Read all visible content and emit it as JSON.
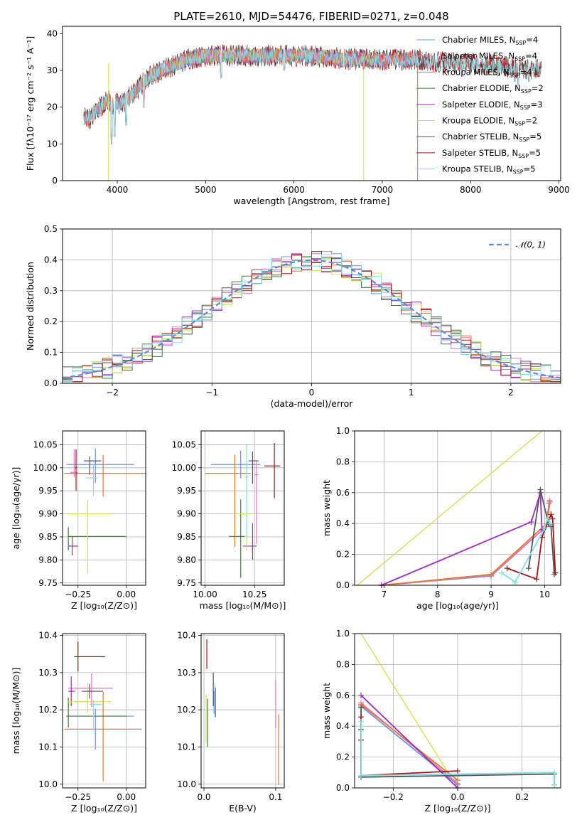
{
  "figure_title": "PLATE=2610, MJD=54476, FIBERID=0271, z=0.048",
  "colors": {
    "chabrier_miles": "#6495ed",
    "salpeter_miles": "#e377c2",
    "kroupa_miles": "#e6772e",
    "chabrier_elodie": "#3f7f3f",
    "salpeter_elodie": "#9c2fbd",
    "kroupa_elodie": "#d4e157",
    "chabrier_stelib": "#555555",
    "salpeter_stelib": "#a31515",
    "kroupa_stelib": "#80deea",
    "normal_curve": "#5b8bd9"
  },
  "legend": [
    {
      "key": "chabrier_miles",
      "label": "Chabrier MILES, N",
      "sub": "SSP",
      "tail": "=4"
    },
    {
      "key": "salpeter_miles",
      "label": "Salpeter MILES, N",
      "sub": "SSP",
      "tail": "=4"
    },
    {
      "key": "kroupa_miles",
      "label": "Kroupa MILES, N",
      "sub": "SSP",
      "tail": "=4"
    },
    {
      "key": "chabrier_elodie",
      "label": "Chabrier ELODIE, N",
      "sub": "SSP",
      "tail": "=2"
    },
    {
      "key": "salpeter_elodie",
      "label": "Salpeter ELODIE, N",
      "sub": "SSP",
      "tail": "=3"
    },
    {
      "key": "kroupa_elodie",
      "label": "Kroupa ELODIE, N",
      "sub": "SSP",
      "tail": "=2"
    },
    {
      "key": "chabrier_stelib",
      "label": "Chabrier STELIB, N",
      "sub": "SSP",
      "tail": "=5"
    },
    {
      "key": "salpeter_stelib",
      "label": "Salpeter STELIB, N",
      "sub": "SSP",
      "tail": "=5"
    },
    {
      "key": "kroupa_stelib",
      "label": "Kroupa STELIB, N",
      "sub": "SSP",
      "tail": "=5"
    }
  ],
  "chart_data": [
    {
      "id": "spectrum",
      "type": "line",
      "xlabel": "wavelength [Angstrom, rest frame]",
      "ylabel": "Flux [fλ10⁻¹⁷ erg cm⁻² s⁻¹ A⁻¹]",
      "xlim": [
        3380,
        9020
      ],
      "ylim": [
        0,
        42
      ],
      "xticks": [
        4000,
        5000,
        6000,
        7000,
        8000,
        9000
      ],
      "yticks": [
        0,
        10,
        20,
        30,
        40
      ],
      "continuum": {
        "x": [
          3620,
          3700,
          3800,
          3900,
          3950,
          4050,
          4200,
          4300,
          4400,
          4600,
          4800,
          5000,
          5200,
          5400,
          5600,
          5800,
          6000,
          6200,
          6400,
          6600,
          6800,
          7000,
          7200,
          7400,
          7600,
          7800,
          8000,
          8200,
          8400,
          8600,
          8800
        ],
        "y": [
          17,
          17,
          20,
          22,
          21,
          21,
          24,
          27,
          29,
          31,
          33,
          34,
          34,
          34,
          34,
          34,
          34,
          34,
          33.5,
          33,
          33,
          33,
          33,
          33,
          32.5,
          32,
          32,
          31.5,
          31,
          30.5,
          30.5
        ]
      },
      "dips": [
        {
          "x": 3934,
          "y": 10
        },
        {
          "x": 3969,
          "y": 12
        },
        {
          "x": 4101,
          "y": 15
        },
        {
          "x": 4300,
          "y": 20
        },
        {
          "x": 5175,
          "y": 28
        },
        {
          "x": 5890,
          "y": 30
        },
        {
          "x": 6563,
          "y": 31
        },
        {
          "x": 8498,
          "y": 27
        },
        {
          "x": 8542,
          "y": 26
        },
        {
          "x": 8662,
          "y": 27
        }
      ],
      "drop_lines": [
        {
          "series": "kroupa_elodie",
          "x": 3900
        },
        {
          "series": "kroupa_elodie",
          "x": 6790
        },
        {
          "series": "kroupa_miles",
          "x": 7400
        }
      ]
    },
    {
      "id": "residuals",
      "type": "histogram",
      "xlabel": "(data-model)/error",
      "ylabel": "Normed distribution",
      "xlim": [
        -2.5,
        2.5
      ],
      "ylim": [
        0,
        0.5
      ],
      "xticks": [
        -2,
        -1,
        0,
        1,
        2
      ],
      "yticks": [
        0.0,
        0.1,
        0.2,
        0.3,
        0.4,
        0.5
      ],
      "bins": 50,
      "legend_label": "𝒩(0, 1)"
    },
    {
      "id": "age_vs_z",
      "type": "scatter",
      "xlabel": "Z [log₁₀(Z/Z⊙)]",
      "ylabel": "age  [log₁₀(age/yr)]",
      "xlim": [
        -0.33,
        0.1
      ],
      "ylim": [
        9.745,
        10.08
      ],
      "xticks": [
        -0.25,
        0.0
      ],
      "yticks": [
        9.75,
        9.8,
        9.85,
        9.9,
        9.95,
        10.0,
        10.05
      ],
      "points": [
        {
          "s": "chabrier_miles",
          "x": -0.16,
          "xerr": [
            0.15,
            0.2
          ],
          "y": 10.007,
          "yerr": [
            0.04,
            0.035
          ]
        },
        {
          "s": "salpeter_miles",
          "x": -0.27,
          "xerr": [
            0.02,
            0.02
          ],
          "y": 9.99,
          "yerr": [
            0.01,
            0.05
          ]
        },
        {
          "s": "kroupa_miles",
          "x": -0.12,
          "xerr": [
            0.2,
            0.22
          ],
          "y": 9.988,
          "yerr": [
            0.05,
            0.04
          ]
        },
        {
          "s": "chabrier_elodie",
          "x": -0.3,
          "xerr": [
            0.0,
            0.3
          ],
          "y": 9.851,
          "yerr": [
            0.03,
            0.02
          ]
        },
        {
          "s": "salpeter_elodie",
          "x": -0.28,
          "xerr": [
            0.02,
            0.03
          ],
          "y": 9.83,
          "yerr": [
            0.02,
            0.02
          ]
        },
        {
          "s": "kroupa_elodie",
          "x": -0.2,
          "xerr": [
            0.1,
            0.12
          ],
          "y": 9.9,
          "yerr": [
            0.13,
            0.03
          ]
        },
        {
          "s": "chabrier_stelib",
          "x": -0.19,
          "xerr": [
            0.03,
            0.06
          ],
          "y": 10.015,
          "yerr": [
            0.03,
            0.01
          ]
        },
        {
          "s": "salpeter_stelib",
          "x": -0.26,
          "xerr": [
            0.005,
            0.005
          ],
          "y": 10.0,
          "yerr": [
            0.05,
            0.04
          ]
        },
        {
          "s": "kroupa_stelib",
          "x": -0.17,
          "xerr": [
            0.04,
            0.02
          ],
          "y": 9.978,
          "yerr": [
            0.04,
            0.03
          ]
        }
      ]
    },
    {
      "id": "age_vs_mass",
      "type": "scatter",
      "xlabel": "mass [log₁₀(M/M⊙)]",
      "ylabel": "",
      "xlim": [
        9.98,
        10.4
      ],
      "ylim": [
        9.745,
        10.08
      ],
      "xticks": [
        10.0,
        10.25
      ],
      "yticks": [
        9.75,
        9.8,
        9.85,
        9.9,
        9.95,
        10.0,
        10.05
      ],
      "points": [
        {
          "s": "chabrier_miles",
          "x": 10.18,
          "xerr": [
            0.15,
            0.1
          ],
          "y": 10.007,
          "yerr": [
            0.03,
            0.03
          ]
        },
        {
          "s": "salpeter_miles",
          "x": 10.26,
          "xerr": [
            0.01,
            0.01
          ],
          "y": 9.985,
          "yerr": [
            0.15,
            0.03
          ]
        },
        {
          "s": "kroupa_miles",
          "x": 10.15,
          "xerr": [
            0.15,
            0.08
          ],
          "y": 9.988,
          "yerr": [
            0.16,
            0.04
          ]
        },
        {
          "s": "chabrier_elodie",
          "x": 10.18,
          "xerr": [
            0.06,
            0.02
          ],
          "y": 9.851,
          "yerr": [
            0.09,
            0.08
          ]
        },
        {
          "s": "salpeter_elodie",
          "x": 10.24,
          "xerr": [
            0.05,
            0.02
          ],
          "y": 9.83,
          "yerr": [
            0.03,
            0.05
          ]
        },
        {
          "s": "kroupa_elodie",
          "x": 10.21,
          "xerr": [
            0.05,
            0.03
          ],
          "y": 9.9,
          "yerr": [
            0.08,
            0.1
          ]
        },
        {
          "s": "chabrier_stelib",
          "x": 10.24,
          "xerr": [
            0.02,
            0.03
          ],
          "y": 10.015,
          "yerr": [
            0.05,
            0.02
          ]
        },
        {
          "s": "salpeter_stelib",
          "x": 10.35,
          "xerr": [
            0.05,
            0.03
          ],
          "y": 10.004,
          "yerr": [
            0.07,
            0.05
          ]
        },
        {
          "s": "kroupa_stelib",
          "x": 10.21,
          "xerr": [
            0.01,
            0.01
          ],
          "y": 9.98,
          "yerr": [
            0.13,
            0.07
          ]
        }
      ]
    },
    {
      "id": "mass_vs_z",
      "type": "scatter",
      "xlabel": "Z [log₁₀(Z/Z⊙)]",
      "ylabel": "mass [log₁₀(M/M⊙)]",
      "xlim": [
        -0.33,
        0.1
      ],
      "ylim": [
        9.99,
        10.405
      ],
      "xticks": [
        -0.25,
        0.0
      ],
      "yticks": [
        10.0,
        10.1,
        10.2,
        10.3,
        10.4
      ],
      "points": [
        {
          "s": "chabrier_miles",
          "x": -0.16,
          "xerr": [
            0.15,
            0.2
          ],
          "y": 10.183,
          "yerr": [
            0.09,
            0.02
          ]
        },
        {
          "s": "salpeter_miles",
          "x": -0.18,
          "xerr": [
            0.12,
            0.11
          ],
          "y": 10.258,
          "yerr": [
            0.05,
            0.04
          ]
        },
        {
          "s": "kroupa_miles",
          "x": -0.12,
          "xerr": [
            0.2,
            0.2
          ],
          "y": 10.148,
          "yerr": [
            0.14,
            0.1
          ]
        },
        {
          "s": "chabrier_elodie",
          "x": -0.3,
          "xerr": [
            0.01,
            0.3
          ],
          "y": 10.183,
          "yerr": [
            0.03,
            0.05
          ]
        },
        {
          "s": "salpeter_elodie",
          "x": -0.285,
          "xerr": [
            0.015,
            0.02
          ],
          "y": 10.25,
          "yerr": [
            0.04,
            0.04
          ]
        },
        {
          "s": "kroupa_elodie",
          "x": -0.2,
          "xerr": [
            0.1,
            0.12
          ],
          "y": 10.222,
          "yerr": [
            0.03,
            0.05
          ]
        },
        {
          "s": "chabrier_stelib",
          "x": -0.19,
          "xerr": [
            0.04,
            0.07
          ],
          "y": 10.25,
          "yerr": [
            0.02,
            0.02
          ]
        },
        {
          "s": "salpeter_stelib",
          "x": -0.25,
          "xerr": [
            0.02,
            0.14
          ],
          "y": 10.343,
          "yerr": [
            0.04,
            0.04
          ]
        },
        {
          "s": "kroupa_stelib",
          "x": -0.17,
          "xerr": [
            0.02,
            0.04
          ],
          "y": 10.215,
          "yerr": [
            0.07,
            0.01
          ]
        }
      ]
    },
    {
      "id": "mass_vs_ebv",
      "type": "scatter",
      "xlabel": "E(B-V)",
      "ylabel": "",
      "xlim": [
        -0.004,
        0.112
      ],
      "ylim": [
        9.99,
        10.405
      ],
      "xticks": [
        0.0,
        0.1
      ],
      "yticks": [
        10.0,
        10.1,
        10.2,
        10.3,
        10.4
      ],
      "points": [
        {
          "s": "chabrier_miles",
          "x": 0.014,
          "xerr": [
            0,
            0
          ],
          "y": 10.22,
          "yerr": [
            0.03,
            0.03
          ]
        },
        {
          "s": "salpeter_miles",
          "x": 0.1,
          "xerr": [
            0,
            0
          ],
          "y": 10.21,
          "yerr": [
            0.06,
            0.07
          ]
        },
        {
          "s": "kroupa_miles",
          "x": 0.104,
          "xerr": [
            0,
            0
          ],
          "y": 10.148,
          "yerr": [
            0.15,
            0.04
          ]
        },
        {
          "s": "chabrier_elodie",
          "x": 0.005,
          "xerr": [
            0,
            0
          ],
          "y": 10.2,
          "yerr": [
            0.1,
            0.03
          ]
        },
        {
          "s": "salpeter_elodie",
          "x": 0.016,
          "xerr": [
            0,
            0
          ],
          "y": 10.22,
          "yerr": [
            0.04,
            0.04
          ]
        },
        {
          "s": "kroupa_elodie",
          "x": 0.003,
          "xerr": [
            0,
            0
          ],
          "y": 10.19,
          "yerr": [
            0.08,
            0.05
          ]
        },
        {
          "s": "chabrier_stelib",
          "x": 0.013,
          "xerr": [
            0,
            0
          ],
          "y": 10.26,
          "yerr": [
            0.05,
            0.04
          ]
        },
        {
          "s": "salpeter_stelib",
          "x": 0.004,
          "xerr": [
            0,
            0
          ],
          "y": 10.35,
          "yerr": [
            0.04,
            0.04
          ]
        },
        {
          "s": "kroupa_stelib",
          "x": 0.015,
          "xerr": [
            0,
            0
          ],
          "y": 10.22,
          "yerr": [
            0.04,
            0.05
          ]
        }
      ]
    },
    {
      "id": "weight_vs_age",
      "type": "line",
      "xlabel": "age  [log₁₀(age/yr)]",
      "ylabel": "mass weight",
      "xlim": [
        6.45,
        10.3
      ],
      "ylim": [
        0,
        1.0
      ],
      "xticks": [
        7,
        8,
        9,
        10
      ],
      "yticks": [
        0.0,
        0.2,
        0.4,
        0.6,
        0.8,
        1.0
      ],
      "series": [
        {
          "s": "kroupa_elodie",
          "x": [
            6.5,
            9.95
          ],
          "y": [
            0.0,
            1.0
          ]
        },
        {
          "s": "chabrier_miles",
          "x": [
            6.95,
            9.0,
            10.03,
            10.08
          ],
          "y": [
            0.0,
            0.06,
            0.38,
            0.53
          ]
        },
        {
          "s": "salpeter_miles",
          "x": [
            6.95,
            9.0,
            10.03,
            10.09
          ],
          "y": [
            0.0,
            0.065,
            0.38,
            0.55
          ]
        },
        {
          "s": "kroupa_miles",
          "x": [
            6.95,
            9.0,
            10.04,
            10.1
          ],
          "y": [
            0.0,
            0.07,
            0.4,
            0.54
          ]
        },
        {
          "s": "salpeter_elodie",
          "x": [
            6.95,
            9.75,
            9.92,
            9.95
          ],
          "y": [
            0.0,
            0.41,
            0.6,
            0.36
          ]
        },
        {
          "s": "chabrier_stelib",
          "x": [
            9.7,
            9.92,
            10.07,
            10.12,
            10.18
          ],
          "y": [
            0.11,
            0.62,
            0.4,
            0.38,
            0.07
          ]
        },
        {
          "s": "salpeter_stelib",
          "x": [
            9.3,
            9.85,
            9.95,
            10.12,
            10.15,
            10.2
          ],
          "y": [
            0.11,
            0.04,
            0.31,
            0.46,
            0.43,
            0.08
          ]
        },
        {
          "s": "kroupa_stelib",
          "x": [
            9.2,
            9.45,
            10.0,
            10.05,
            10.1
          ],
          "y": [
            0.08,
            0.02,
            0.37,
            0.43,
            0.4
          ]
        }
      ]
    },
    {
      "id": "weight_vs_z",
      "type": "line",
      "xlabel": "Z [log₁₀(Z/Z⊙)]",
      "ylabel": "mass weight",
      "xlim": [
        -0.32,
        0.32
      ],
      "ylim": [
        0,
        1.0
      ],
      "xticks": [
        -0.2,
        0.0,
        0.2
      ],
      "yticks": [
        0.0,
        0.2,
        0.4,
        0.6,
        0.8,
        1.0
      ],
      "series": [
        {
          "s": "kroupa_elodie",
          "x": [
            -0.3,
            0.0
          ],
          "y": [
            1.0,
            0.0
          ]
        },
        {
          "s": "chabrier_miles",
          "x": [
            -0.3,
            0.0
          ],
          "y": [
            0.53,
            0.02
          ]
        },
        {
          "s": "salpeter_miles",
          "x": [
            -0.3,
            0.0
          ],
          "y": [
            0.55,
            0.03
          ]
        },
        {
          "s": "kroupa_miles",
          "x": [
            -0.3,
            0.0
          ],
          "y": [
            0.54,
            0.05
          ]
        },
        {
          "s": "salpeter_elodie",
          "x": [
            -0.3,
            0.0
          ],
          "y": [
            0.6,
            0.0
          ]
        },
        {
          "s": "chabrier_stelib",
          "x": [
            -0.3,
            -0.3,
            -0.3,
            0.3,
            0.3
          ],
          "y": [
            0.52,
            0.38,
            0.07,
            0.09,
            0.02
          ]
        },
        {
          "s": "salpeter_stelib",
          "x": [
            -0.3,
            -0.3,
            -0.3,
            0.0
          ],
          "y": [
            0.46,
            0.31,
            0.08,
            0.11
          ]
        },
        {
          "s": "kroupa_stelib",
          "x": [
            -0.3,
            -0.3,
            -0.3,
            0.3,
            0.3
          ],
          "y": [
            0.43,
            0.37,
            0.08,
            0.1,
            0.02
          ]
        }
      ]
    }
  ]
}
